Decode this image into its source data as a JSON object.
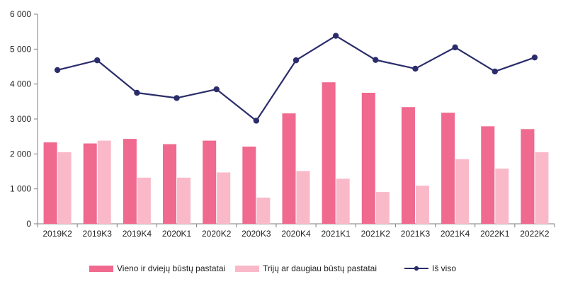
{
  "chart_data": {
    "type": "bar",
    "categories": [
      "2019K2",
      "2019K3",
      "2019K4",
      "2020K1",
      "2020K2",
      "2020K3",
      "2020K4",
      "2021K1",
      "2021K2",
      "2021K3",
      "2021K4",
      "2022K1",
      "2022K2"
    ],
    "series": [
      {
        "name": "Vieno ir dviejų būstų pastatai",
        "kind": "bar",
        "color": "#f0698f",
        "values": [
          2330,
          2300,
          2430,
          2280,
          2380,
          2210,
          3160,
          4050,
          3750,
          3340,
          3180,
          2790,
          2710
        ]
      },
      {
        "name": "Trijų ar daugiau būstų pastatai",
        "kind": "bar",
        "color": "#f9b9c9",
        "values": [
          2050,
          2380,
          1320,
          1320,
          1470,
          750,
          1510,
          1290,
          910,
          1090,
          1850,
          1580,
          2050
        ]
      },
      {
        "name": "Iš viso",
        "kind": "line",
        "color": "#2b2d6b",
        "values": [
          4400,
          4680,
          3750,
          3600,
          3850,
          2950,
          4680,
          5380,
          4690,
          4440,
          5050,
          4360,
          4760
        ]
      }
    ],
    "y_ticks": [
      "0",
      "1 000",
      "2 000",
      "3 000",
      "4 000",
      "5 000",
      "6 000"
    ],
    "ylim": [
      0,
      6000
    ],
    "grid": false,
    "legend_position": "bottom"
  }
}
